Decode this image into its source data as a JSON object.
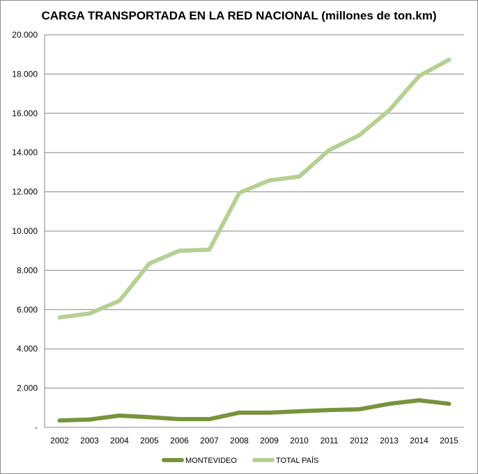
{
  "chart_data": {
    "type": "line",
    "title": "CARGA TRANSPORTADA EN LA RED NACIONAL (millones de ton.km)",
    "xlabel": "",
    "ylabel": "",
    "ylim": [
      0,
      20000
    ],
    "y_ticks": [
      {
        "value": 0,
        "label": "-"
      },
      {
        "value": 2000,
        "label": "2.000"
      },
      {
        "value": 4000,
        "label": "4.000"
      },
      {
        "value": 6000,
        "label": "6.000"
      },
      {
        "value": 8000,
        "label": "8.000"
      },
      {
        "value": 10000,
        "label": "10.000"
      },
      {
        "value": 12000,
        "label": "12.000"
      },
      {
        "value": 14000,
        "label": "14.000"
      },
      {
        "value": 16000,
        "label": "16.000"
      },
      {
        "value": 18000,
        "label": "18.000"
      },
      {
        "value": 20000,
        "label": "20.000"
      }
    ],
    "categories": [
      "2002",
      "2003",
      "2004",
      "2005",
      "2006",
      "2007",
      "2008",
      "2009",
      "2010",
      "2011",
      "2012",
      "2013",
      "2014",
      "2015"
    ],
    "grid": true,
    "legend_position": "bottom",
    "series": [
      {
        "name": "MONTEVIDEO",
        "color": "#77933c",
        "values": [
          350,
          400,
          600,
          520,
          420,
          420,
          750,
          750,
          820,
          880,
          920,
          1200,
          1380,
          1200
        ]
      },
      {
        "name": "TOTAL PAÍS",
        "color": "#b6d094",
        "values": [
          5600,
          5800,
          6450,
          8350,
          9000,
          9050,
          11950,
          12580,
          12780,
          14130,
          14880,
          16150,
          17900,
          18730
        ]
      }
    ]
  }
}
